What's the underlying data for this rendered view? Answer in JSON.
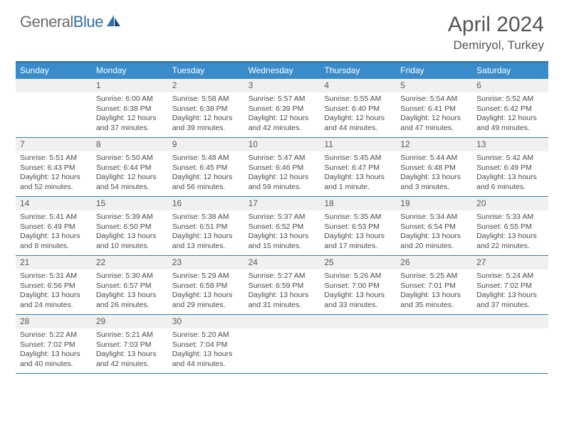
{
  "brand": {
    "part1": "General",
    "part2": "Blue"
  },
  "title": "April 2024",
  "location": "Demiryol, Turkey",
  "colors": {
    "header_bg": "#3a8bc9",
    "border": "#3a7ab0",
    "brand_gray": "#6b6b6b",
    "brand_blue": "#2f6fa8",
    "text": "#4a4a4a",
    "daynum_bg": "#f0f0f0"
  },
  "day_names": [
    "Sunday",
    "Monday",
    "Tuesday",
    "Wednesday",
    "Thursday",
    "Friday",
    "Saturday"
  ],
  "weeks": [
    [
      {
        "n": "",
        "sr": "",
        "ss": "",
        "d1": "",
        "d2": ""
      },
      {
        "n": "1",
        "sr": "Sunrise: 6:00 AM",
        "ss": "Sunset: 6:38 PM",
        "d1": "Daylight: 12 hours",
        "d2": "and 37 minutes."
      },
      {
        "n": "2",
        "sr": "Sunrise: 5:58 AM",
        "ss": "Sunset: 6:38 PM",
        "d1": "Daylight: 12 hours",
        "d2": "and 39 minutes."
      },
      {
        "n": "3",
        "sr": "Sunrise: 5:57 AM",
        "ss": "Sunset: 6:39 PM",
        "d1": "Daylight: 12 hours",
        "d2": "and 42 minutes."
      },
      {
        "n": "4",
        "sr": "Sunrise: 5:55 AM",
        "ss": "Sunset: 6:40 PM",
        "d1": "Daylight: 12 hours",
        "d2": "and 44 minutes."
      },
      {
        "n": "5",
        "sr": "Sunrise: 5:54 AM",
        "ss": "Sunset: 6:41 PM",
        "d1": "Daylight: 12 hours",
        "d2": "and 47 minutes."
      },
      {
        "n": "6",
        "sr": "Sunrise: 5:52 AM",
        "ss": "Sunset: 6:42 PM",
        "d1": "Daylight: 12 hours",
        "d2": "and 49 minutes."
      }
    ],
    [
      {
        "n": "7",
        "sr": "Sunrise: 5:51 AM",
        "ss": "Sunset: 6:43 PM",
        "d1": "Daylight: 12 hours",
        "d2": "and 52 minutes."
      },
      {
        "n": "8",
        "sr": "Sunrise: 5:50 AM",
        "ss": "Sunset: 6:44 PM",
        "d1": "Daylight: 12 hours",
        "d2": "and 54 minutes."
      },
      {
        "n": "9",
        "sr": "Sunrise: 5:48 AM",
        "ss": "Sunset: 6:45 PM",
        "d1": "Daylight: 12 hours",
        "d2": "and 56 minutes."
      },
      {
        "n": "10",
        "sr": "Sunrise: 5:47 AM",
        "ss": "Sunset: 6:46 PM",
        "d1": "Daylight: 12 hours",
        "d2": "and 59 minutes."
      },
      {
        "n": "11",
        "sr": "Sunrise: 5:45 AM",
        "ss": "Sunset: 6:47 PM",
        "d1": "Daylight: 13 hours",
        "d2": "and 1 minute."
      },
      {
        "n": "12",
        "sr": "Sunrise: 5:44 AM",
        "ss": "Sunset: 6:48 PM",
        "d1": "Daylight: 13 hours",
        "d2": "and 3 minutes."
      },
      {
        "n": "13",
        "sr": "Sunrise: 5:42 AM",
        "ss": "Sunset: 6:49 PM",
        "d1": "Daylight: 13 hours",
        "d2": "and 6 minutes."
      }
    ],
    [
      {
        "n": "14",
        "sr": "Sunrise: 5:41 AM",
        "ss": "Sunset: 6:49 PM",
        "d1": "Daylight: 13 hours",
        "d2": "and 8 minutes."
      },
      {
        "n": "15",
        "sr": "Sunrise: 5:39 AM",
        "ss": "Sunset: 6:50 PM",
        "d1": "Daylight: 13 hours",
        "d2": "and 10 minutes."
      },
      {
        "n": "16",
        "sr": "Sunrise: 5:38 AM",
        "ss": "Sunset: 6:51 PM",
        "d1": "Daylight: 13 hours",
        "d2": "and 13 minutes."
      },
      {
        "n": "17",
        "sr": "Sunrise: 5:37 AM",
        "ss": "Sunset: 6:52 PM",
        "d1": "Daylight: 13 hours",
        "d2": "and 15 minutes."
      },
      {
        "n": "18",
        "sr": "Sunrise: 5:35 AM",
        "ss": "Sunset: 6:53 PM",
        "d1": "Daylight: 13 hours",
        "d2": "and 17 minutes."
      },
      {
        "n": "19",
        "sr": "Sunrise: 5:34 AM",
        "ss": "Sunset: 6:54 PM",
        "d1": "Daylight: 13 hours",
        "d2": "and 20 minutes."
      },
      {
        "n": "20",
        "sr": "Sunrise: 5:33 AM",
        "ss": "Sunset: 6:55 PM",
        "d1": "Daylight: 13 hours",
        "d2": "and 22 minutes."
      }
    ],
    [
      {
        "n": "21",
        "sr": "Sunrise: 5:31 AM",
        "ss": "Sunset: 6:56 PM",
        "d1": "Daylight: 13 hours",
        "d2": "and 24 minutes."
      },
      {
        "n": "22",
        "sr": "Sunrise: 5:30 AM",
        "ss": "Sunset: 6:57 PM",
        "d1": "Daylight: 13 hours",
        "d2": "and 26 minutes."
      },
      {
        "n": "23",
        "sr": "Sunrise: 5:29 AM",
        "ss": "Sunset: 6:58 PM",
        "d1": "Daylight: 13 hours",
        "d2": "and 29 minutes."
      },
      {
        "n": "24",
        "sr": "Sunrise: 5:27 AM",
        "ss": "Sunset: 6:59 PM",
        "d1": "Daylight: 13 hours",
        "d2": "and 31 minutes."
      },
      {
        "n": "25",
        "sr": "Sunrise: 5:26 AM",
        "ss": "Sunset: 7:00 PM",
        "d1": "Daylight: 13 hours",
        "d2": "and 33 minutes."
      },
      {
        "n": "26",
        "sr": "Sunrise: 5:25 AM",
        "ss": "Sunset: 7:01 PM",
        "d1": "Daylight: 13 hours",
        "d2": "and 35 minutes."
      },
      {
        "n": "27",
        "sr": "Sunrise: 5:24 AM",
        "ss": "Sunset: 7:02 PM",
        "d1": "Daylight: 13 hours",
        "d2": "and 37 minutes."
      }
    ],
    [
      {
        "n": "28",
        "sr": "Sunrise: 5:22 AM",
        "ss": "Sunset: 7:02 PM",
        "d1": "Daylight: 13 hours",
        "d2": "and 40 minutes."
      },
      {
        "n": "29",
        "sr": "Sunrise: 5:21 AM",
        "ss": "Sunset: 7:03 PM",
        "d1": "Daylight: 13 hours",
        "d2": "and 42 minutes."
      },
      {
        "n": "30",
        "sr": "Sunrise: 5:20 AM",
        "ss": "Sunset: 7:04 PM",
        "d1": "Daylight: 13 hours",
        "d2": "and 44 minutes."
      },
      {
        "n": "",
        "sr": "",
        "ss": "",
        "d1": "",
        "d2": ""
      },
      {
        "n": "",
        "sr": "",
        "ss": "",
        "d1": "",
        "d2": ""
      },
      {
        "n": "",
        "sr": "",
        "ss": "",
        "d1": "",
        "d2": ""
      },
      {
        "n": "",
        "sr": "",
        "ss": "",
        "d1": "",
        "d2": ""
      }
    ]
  ]
}
